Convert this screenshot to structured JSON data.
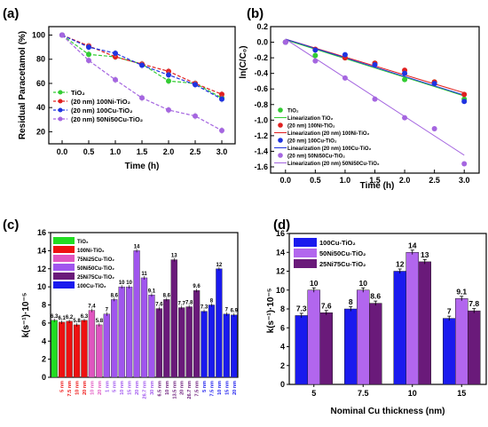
{
  "chart_data": [
    {
      "panel": "(a)",
      "type": "line",
      "xlabel": "Time (h)",
      "ylabel": "Residual Paracetamol (%)",
      "xlim": [
        -0.25,
        3.25
      ],
      "ylim": [
        10,
        107
      ],
      "xticks": [
        "0.0",
        "0.5",
        "1.0",
        "1.5",
        "2.0",
        "2.5",
        "3.0"
      ],
      "yticks": [
        "20",
        "40",
        "60",
        "80",
        "100"
      ],
      "legend_position": "bottom-left",
      "x": [
        0,
        0.5,
        1.0,
        1.5,
        2.0,
        2.5,
        3.0
      ],
      "series": [
        {
          "name": "TiO₂",
          "color": "#33cc33",
          "style": "dashed",
          "values": [
            100,
            84,
            82,
            76,
            62,
            60,
            48
          ],
          "error": [
            2,
            3,
            3,
            3,
            3,
            3,
            3
          ]
        },
        {
          "name": "(20 nm) 100Ni-TiO₂",
          "color": "#e02020",
          "style": "dashed",
          "values": [
            100,
            91,
            82,
            76,
            70,
            60,
            51
          ],
          "error": [
            2,
            3,
            3,
            3,
            3,
            3,
            3
          ]
        },
        {
          "name": "(20 nm) 100Cu-TiO₂",
          "color": "#1f33e0",
          "style": "dashed",
          "values": [
            100,
            90,
            85,
            75,
            67,
            59,
            47
          ],
          "error": [
            2,
            3,
            3,
            3,
            3,
            3,
            3
          ]
        },
        {
          "name": "(20 nm) 50Ni50Cu-TiO₂",
          "color": "#a566e0",
          "style": "dashed",
          "values": [
            100,
            79,
            63,
            48,
            38,
            33,
            21
          ],
          "error": [
            2,
            3,
            3,
            3,
            3,
            3,
            3
          ]
        }
      ]
    },
    {
      "panel": "(b)",
      "type": "scatter",
      "xlabel": "Time (h)",
      "ylabel": "ln(C/C₀)",
      "xlim": [
        -0.25,
        3.25
      ],
      "ylim": [
        -1.68,
        0.2
      ],
      "xticks": [
        "0.0",
        "0.5",
        "1.0",
        "1.5",
        "2.0",
        "2.5",
        "3.0"
      ],
      "yticks": [
        "0.2",
        "0.0",
        "-0.2",
        "-0.4",
        "-0.6",
        "-0.8",
        "-1.0",
        "-1.2",
        "-1.4",
        "-1.6"
      ],
      "legend_position": "bottom-left",
      "x": [
        0,
        0.5,
        1.0,
        1.5,
        2.0,
        2.5,
        3.0
      ],
      "series": [
        {
          "name": "TiO₂",
          "color": "#33cc33",
          "values": [
            0,
            -0.17,
            -0.2,
            -0.27,
            -0.48,
            -0.51,
            -0.73
          ]
        },
        {
          "name": "(20 nm) 100Ni-TiO₂",
          "color": "#e02020",
          "values": [
            0,
            -0.09,
            -0.2,
            -0.27,
            -0.36,
            -0.51,
            -0.67
          ]
        },
        {
          "name": "(20 nm) 100Cu-TiO₂",
          "color": "#1f33e0",
          "values": [
            0,
            -0.1,
            -0.16,
            -0.29,
            -0.4,
            -0.53,
            -0.76
          ]
        },
        {
          "name": "(20 nm) 50Ni50Cu-TiO₂",
          "color": "#a566e0",
          "values": [
            0,
            -0.24,
            -0.46,
            -0.73,
            -0.97,
            -1.11,
            -1.56
          ]
        }
      ],
      "fits": [
        {
          "name": "Linearization TiO₂",
          "color": "#33cc33",
          "y0": 0.03,
          "y3": -0.69
        },
        {
          "name": "Linearization (20 nm) 100Ni-TiO₂",
          "color": "#e02020",
          "y0": 0.04,
          "y3": -0.65
        },
        {
          "name": "Linearization (20 nm) 100Cu-TiO₂",
          "color": "#1f33e0",
          "y0": 0.04,
          "y3": -0.68
        },
        {
          "name": "Linearization (20 nm) 50Ni50Cu-TiO₂",
          "color": "#a566e0",
          "y0": 0.04,
          "y3": -1.45
        }
      ]
    },
    {
      "panel": "(c)",
      "type": "bar",
      "ylabel": "k(s⁻¹)·10⁻⁵",
      "ylim": [
        0,
        16
      ],
      "yticks": [
        "0",
        "2",
        "4",
        "6",
        "8",
        "10",
        "12",
        "14",
        "16"
      ],
      "legend_position": "top-left",
      "legend": [
        {
          "name": "TiO₂",
          "color": "#22dd22"
        },
        {
          "name": "100Ni-TiO₂",
          "color": "#ee1111"
        },
        {
          "name": "75Ni25Cu-TiO₂",
          "color": "#e055c0"
        },
        {
          "name": "50Ni50Cu-TiO₂",
          "color": "#a055ee"
        },
        {
          "name": "25Ni75Cu-TiO₂",
          "color": "#6a1a7a"
        },
        {
          "name": "100Cu-TiO₂",
          "color": "#1a1aee"
        }
      ],
      "bars": [
        {
          "label": "",
          "value": 6.3,
          "text": "6.3",
          "group": 0
        },
        {
          "label": "5 nm",
          "value": 6.1,
          "text": "6.1",
          "group": 1
        },
        {
          "label": "7.5 nm",
          "value": 6.2,
          "text": "6.2",
          "group": 1
        },
        {
          "label": "10 nm",
          "value": 5.8,
          "text": "5.8",
          "group": 1
        },
        {
          "label": "20 nm",
          "value": 6.3,
          "text": "6.3",
          "group": 1
        },
        {
          "label": "10 nm",
          "value": 7.4,
          "text": "7.4",
          "group": 2
        },
        {
          "label": "20 nm",
          "value": 5.8,
          "text": "5.8",
          "group": 2
        },
        {
          "label": "1 nm",
          "value": 7.0,
          "text": "7",
          "group": 3
        },
        {
          "label": "5 nm",
          "value": 8.6,
          "text": "8.6",
          "group": 3
        },
        {
          "label": "10 nm",
          "value": 10.0,
          "text": "10",
          "group": 3
        },
        {
          "label": "15 nm",
          "value": 10.0,
          "text": "10",
          "group": 3
        },
        {
          "label": "20 nm",
          "value": 14.0,
          "text": "14",
          "group": 3
        },
        {
          "label": "26.7 nm",
          "value": 11.0,
          "text": "11",
          "group": 3
        },
        {
          "label": "30 nm",
          "value": 9.1,
          "text": "9.1",
          "group": 3
        },
        {
          "label": "6.5 nm",
          "value": 7.6,
          "text": "7.6",
          "group": 4
        },
        {
          "label": "10 nm",
          "value": 8.6,
          "text": "8.6",
          "group": 4
        },
        {
          "label": "13.5 nm",
          "value": 13.0,
          "text": "13",
          "group": 4
        },
        {
          "label": "20 nm",
          "value": 7.7,
          "text": "7.7",
          "group": 4
        },
        {
          "label": "26.7 nm",
          "value": 7.8,
          "text": "7.8",
          "group": 4
        },
        {
          "label": "7.5 nm",
          "value": 9.6,
          "text": "9.6",
          "group": 4
        },
        {
          "label": "5 nm",
          "value": 7.3,
          "text": "7.3",
          "group": 5
        },
        {
          "label": "7.5 nm",
          "value": 8.0,
          "text": "8",
          "group": 5
        },
        {
          "label": "10 nm",
          "value": 12.0,
          "text": "12",
          "group": 5
        },
        {
          "label": "15 nm",
          "value": 7.0,
          "text": "7",
          "group": 5
        },
        {
          "label": "20 nm",
          "value": 6.9,
          "text": "6.9",
          "group": 5
        }
      ]
    },
    {
      "panel": "(d)",
      "type": "bar",
      "xlabel": "Nominal Cu thickness (nm)",
      "ylabel": "k(s⁻¹)·10⁻⁵",
      "ylim": [
        0,
        16
      ],
      "yticks": [
        "0",
        "2",
        "4",
        "6",
        "8",
        "10",
        "12",
        "14",
        "16"
      ],
      "legend_position": "top-left",
      "categories": [
        "5",
        "7.5",
        "10",
        "15"
      ],
      "series": [
        {
          "name": "100Cu-TiO₂",
          "color": "#1a1aee",
          "values": [
            7.3,
            8,
            12,
            7
          ],
          "labels": [
            "7.3",
            "8",
            "12",
            "7"
          ]
        },
        {
          "name": "50Ni50Cu-TiO₂",
          "color": "#b266ee",
          "values": [
            10,
            10,
            14,
            9.1
          ],
          "labels": [
            "10",
            "10",
            "14",
            "9.1"
          ]
        },
        {
          "name": "25Ni75Cu-TiO₂",
          "color": "#6a1a7a",
          "values": [
            7.6,
            8.6,
            13,
            7.8
          ],
          "labels": [
            "7.6",
            "8.6",
            "13",
            "7.8"
          ]
        }
      ]
    }
  ]
}
